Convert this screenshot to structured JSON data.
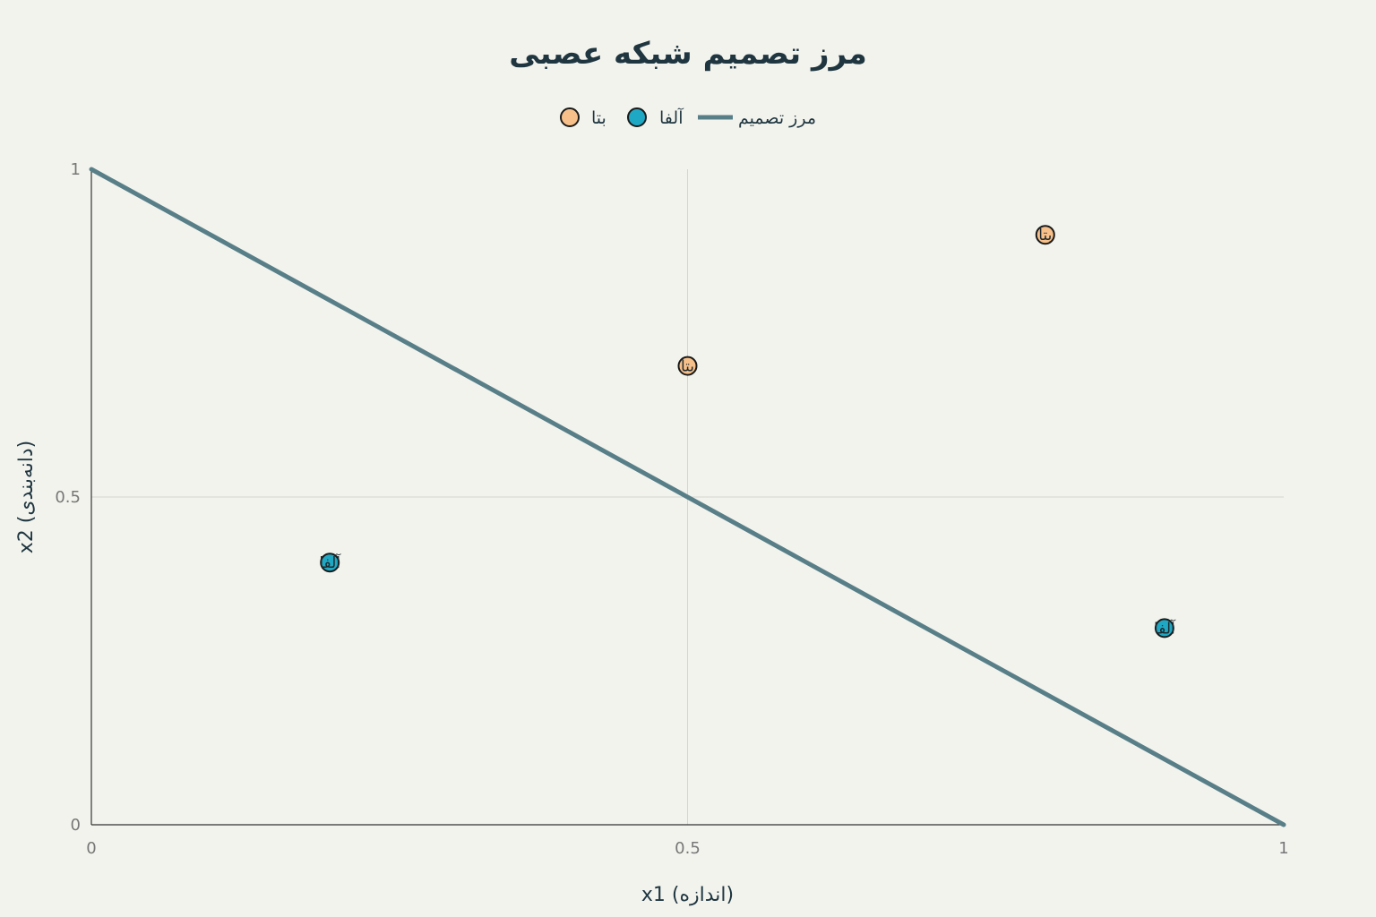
{
  "chart_data": {
    "type": "scatter",
    "title": "مرز تصمیم شبکه عصبی",
    "xlabel": "x1 (اندازه)",
    "ylabel": "x2 (دانه‌بندی)",
    "xlim": [
      0,
      1
    ],
    "ylim": [
      0,
      1
    ],
    "x_ticks": [
      "0",
      "0.5",
      "1"
    ],
    "y_ticks": [
      "0",
      "0.5",
      "1"
    ],
    "grid": true,
    "legend_position": "top-center",
    "series": [
      {
        "name": "بتا",
        "color": "#f7c08a",
        "points": [
          {
            "x": 0.5,
            "y": 0.7,
            "label": "بتا"
          },
          {
            "x": 0.8,
            "y": 0.9,
            "label": "بتا"
          }
        ]
      },
      {
        "name": "آلفا",
        "color": "#1fa8c4",
        "points": [
          {
            "x": 0.2,
            "y": 0.4,
            "label": "آلفا"
          },
          {
            "x": 0.9,
            "y": 0.3,
            "label": "آلفا"
          }
        ]
      }
    ],
    "boundary": {
      "name": "مرز تصمیم",
      "color": "#587f88",
      "x": [
        0,
        1
      ],
      "y": [
        1,
        0
      ]
    }
  }
}
